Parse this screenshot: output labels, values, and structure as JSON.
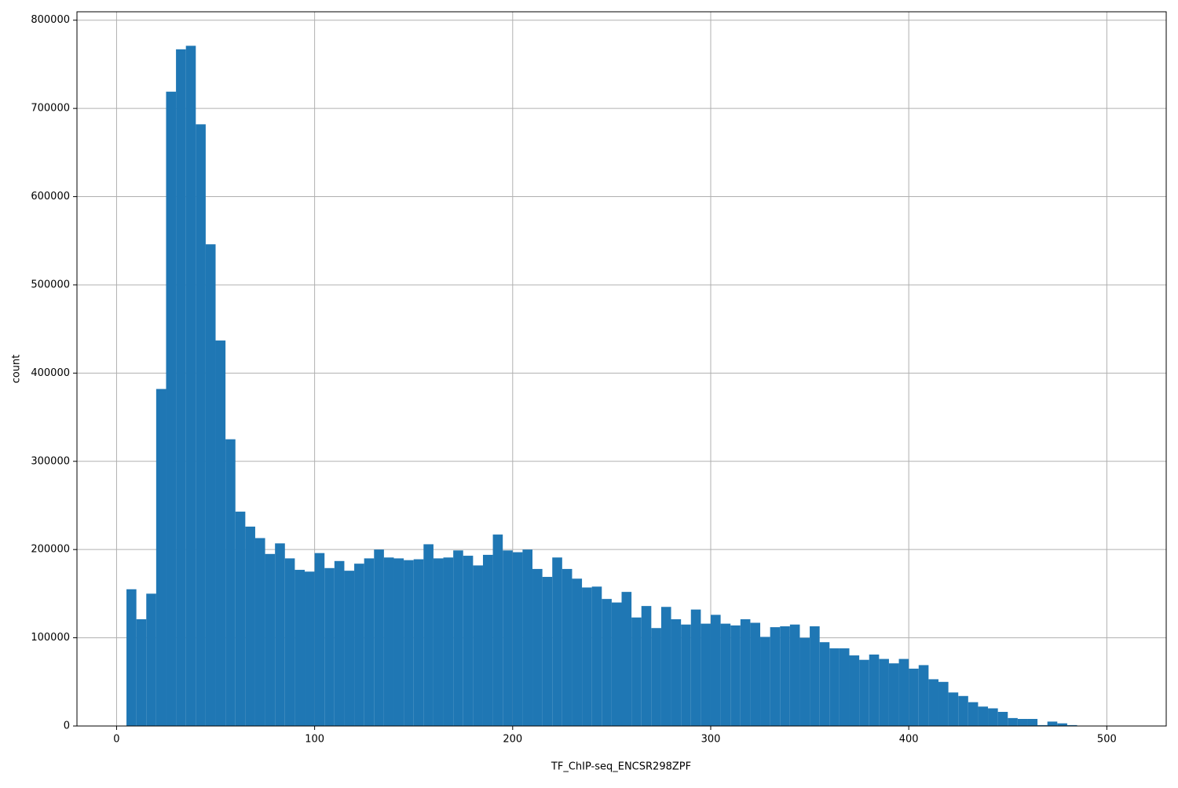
{
  "chart_data": {
    "type": "histogram",
    "xlabel": "TF_ChIP-seq_ENCSR298ZPF",
    "ylabel": "count",
    "bins": [
      5,
      10,
      15,
      20,
      25,
      30,
      35,
      40,
      45,
      50,
      55,
      60,
      65,
      70,
      75,
      80,
      85,
      90,
      95,
      100,
      105,
      110,
      115,
      120,
      125,
      130,
      135,
      140,
      145,
      150,
      155,
      160,
      165,
      170,
      175,
      180,
      185,
      190,
      195,
      200,
      205,
      210,
      215,
      220,
      225,
      230,
      235,
      240,
      245,
      250,
      255,
      260,
      265,
      270,
      275,
      280,
      285,
      290,
      295,
      300,
      305,
      310,
      315,
      320,
      325,
      330,
      335,
      340,
      345,
      350,
      355,
      360,
      365,
      370,
      375,
      380,
      385,
      390,
      395,
      400,
      405,
      410,
      415,
      420,
      425,
      430,
      435,
      440,
      445,
      450,
      455,
      460,
      465,
      470,
      475,
      480,
      485,
      490,
      495,
      500,
      505
    ],
    "values": [
      155000,
      121000,
      150000,
      382000,
      719000,
      767000,
      771000,
      682000,
      546000,
      437000,
      325000,
      243000,
      226000,
      213000,
      195000,
      207000,
      190000,
      177000,
      175000,
      196000,
      179000,
      187000,
      176000,
      184000,
      190000,
      200000,
      191000,
      190000,
      188000,
      189000,
      206000,
      190000,
      191000,
      199000,
      193000,
      182000,
      194000,
      217000,
      199000,
      197000,
      200000,
      178000,
      169000,
      191000,
      178000,
      167000,
      157000,
      158000,
      144000,
      140000,
      152000,
      123000,
      136000,
      111000,
      135000,
      121000,
      115000,
      132000,
      116000,
      126000,
      116000,
      114000,
      121000,
      117000,
      101000,
      112000,
      113000,
      115000,
      100000,
      113000,
      95000,
      88000,
      88000,
      80000,
      75000,
      81000,
      76000,
      71000,
      76000,
      65000,
      69000,
      53000,
      50000,
      38000,
      34000,
      27000,
      22000,
      20000,
      16000,
      9000,
      8000,
      8000,
      1000,
      5000,
      3000,
      1000,
      300,
      100,
      0,
      0
    ],
    "color": "#1f77b4",
    "xlim": [
      -20,
      530
    ],
    "ylim": [
      0,
      809550
    ],
    "xticks": [
      0,
      100,
      200,
      300,
      400,
      500
    ],
    "yticks": [
      0,
      100000,
      200000,
      300000,
      400000,
      500000,
      600000,
      700000,
      800000
    ],
    "grid": true
  }
}
